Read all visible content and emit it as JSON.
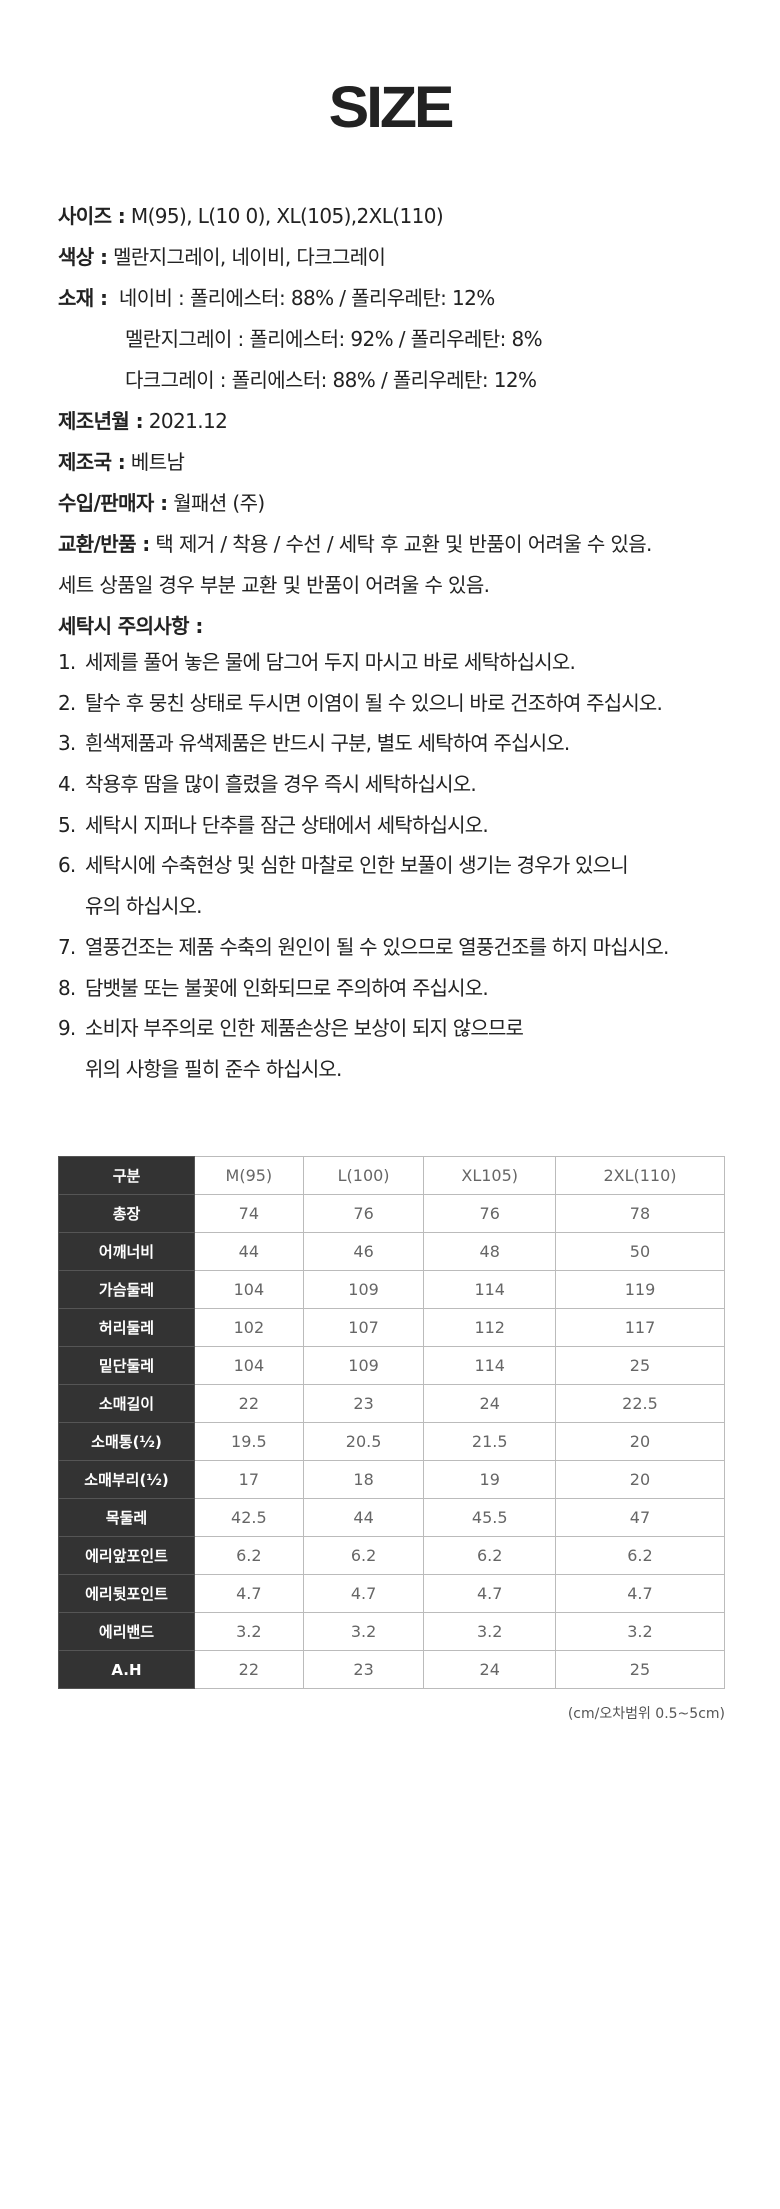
{
  "title": "SIZE",
  "info": [
    {
      "label": "사이즈 :",
      "value": " M(95), L(10 0), XL(105),2XL(110)"
    },
    {
      "label": "색상 :",
      "value": " 멜란지그레이, 네이비, 다크그레이"
    },
    {
      "label": "소재 :",
      "value": "  네이비 : 폴리에스터: 88% / 폴리우레탄: 12%"
    },
    {
      "label": "",
      "value": "멜란지그레이 : 폴리에스터: 92% / 폴리우레탄: 8%"
    },
    {
      "label": "",
      "value": "다크그레이 : 폴리에스터: 88% / 폴리우레탄: 12%"
    },
    {
      "label": "제조년월 :",
      "value": " 2021.12"
    },
    {
      "label": "제조국 :",
      "value": " 베트남"
    },
    {
      "label": "수입/판매자 :",
      "value": " 월패션 (주)"
    },
    {
      "label": "교환/반품 :",
      "value": " 택 제거 / 착용 / 수선 / 세탁 후 교환 및 반품이 어려울 수 있음."
    },
    {
      "label": "",
      "value": "세트 상품일 경우 부분 교환 및 반품이 어려울 수 있음."
    },
    {
      "label": "세탁시 주의사항 :",
      "value": ""
    }
  ],
  "care": [
    {
      "num": "1.",
      "text": "세제를 풀어 놓은 물에 담그어 두지 마시고 바로 세탁하십시오."
    },
    {
      "num": "2.",
      "text": "탈수 후 뭉친 상태로 두시면 이염이 될 수 있으니 바로 건조하여 주십시오."
    },
    {
      "num": "3.",
      "text": "흰색제품과 유색제품은 반드시 구분, 별도 세탁하여 주십시오."
    },
    {
      "num": "4.",
      "text": "착용후 땀을 많이 흘렸을 경우 즉시 세탁하십시오."
    },
    {
      "num": "5.",
      "text": "세탁시 지퍼나 단추를 잠근 상태에서 세탁하십시오."
    },
    {
      "num": "6.",
      "text": "세탁시에 수축현상 및 심한 마찰로 인한 보풀이 생기는 경우가 있으니",
      "cont": "유의 하십시오."
    },
    {
      "num": "7.",
      "text": "열풍건조는 제품 수축의 원인이 될 수 있으므로 열풍건조를 하지 마십시오."
    },
    {
      "num": "8.",
      "text": "담뱃불 또는 불꽃에 인화되므로 주의하여 주십시오."
    },
    {
      "num": "9.",
      "text": "소비자 부주의로 인한 제품손상은 보상이 되지 않으므로",
      "cont": "위의 사항을 필히 준수 하십시오."
    }
  ],
  "table": {
    "header": [
      "구분",
      "M(95)",
      "L(100)",
      "XL105)",
      "2XL(110)"
    ],
    "rows": [
      [
        "총장",
        "74",
        "76",
        "76",
        "78"
      ],
      [
        "어깨너비",
        "44",
        "46",
        "48",
        "50"
      ],
      [
        "가슴둘레",
        "104",
        "109",
        "114",
        "119"
      ],
      [
        "허리둘레",
        "102",
        "107",
        "112",
        "117"
      ],
      [
        "밑단둘레",
        "104",
        "109",
        "114",
        "25"
      ],
      [
        "소매길이",
        "22",
        "23",
        "24",
        "22.5"
      ],
      [
        "소매통(½)",
        "19.5",
        "20.5",
        "21.5",
        "20"
      ],
      [
        "소매부리(½)",
        "17",
        "18",
        "19",
        "20"
      ],
      [
        "목둘레",
        "42.5",
        "44",
        "45.5",
        "47"
      ],
      [
        "에리앞포인트",
        "6.2",
        "6.2",
        "6.2",
        "6.2"
      ],
      [
        "에리뒷포인트",
        "4.7",
        "4.7",
        "4.7",
        "4.7"
      ],
      [
        "에리밴드",
        "3.2",
        "3.2",
        "3.2",
        "3.2"
      ],
      [
        "A.H",
        "22",
        "23",
        "24",
        "25"
      ]
    ]
  },
  "note": "(cm/오차범위 0.5~5cm)"
}
